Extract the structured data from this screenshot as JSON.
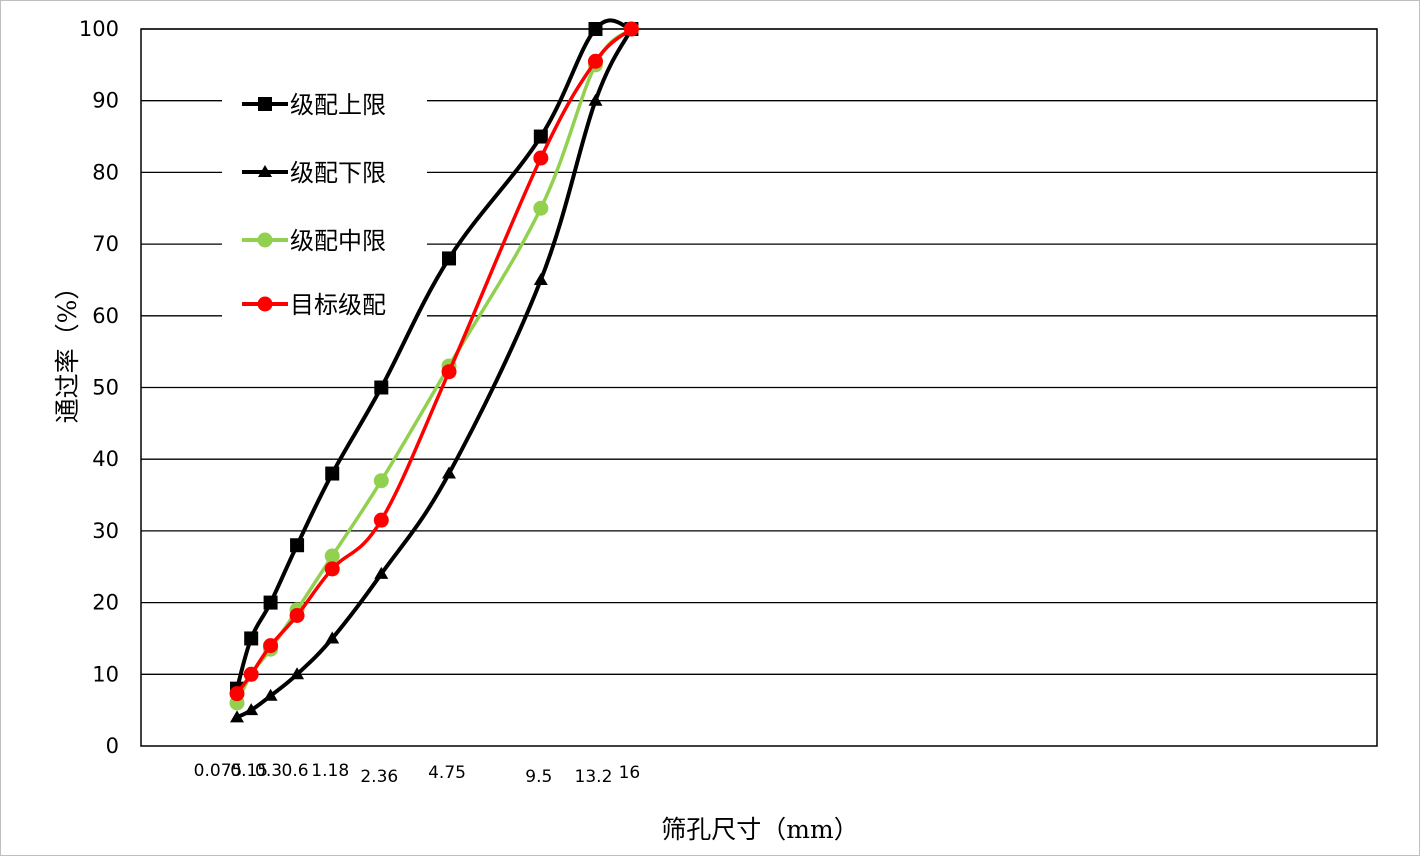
{
  "chart_data": {
    "type": "line",
    "title": "",
    "xlabel": "筛孔尺寸（mm）",
    "ylabel": "通过率（%）",
    "x": [
      "0.075",
      "0.15",
      "0.3",
      "0.6",
      "1.18",
      "2.36",
      "4.75",
      "9.5",
      "13.2",
      "16"
    ],
    "ylim": [
      0,
      100
    ],
    "yticks": [
      "0",
      "10",
      "20",
      "30",
      "40",
      "50",
      "60",
      "70",
      "80",
      "90",
      "100"
    ],
    "grid": true,
    "legend_position": "top-left",
    "series": [
      {
        "name": "级配上限",
        "color": "#000000",
        "marker": "square",
        "values": [
          8,
          15,
          20,
          28,
          38,
          50,
          68,
          85,
          100,
          100
        ]
      },
      {
        "name": "级配下限",
        "color": "#000000",
        "marker": "triangle",
        "values": [
          4,
          5,
          7,
          10,
          15,
          24,
          38,
          65,
          90,
          100
        ]
      },
      {
        "name": "级配中限",
        "color": "#92d050",
        "marker": "circle",
        "values": [
          6,
          10,
          13.5,
          19,
          26.5,
          37,
          53,
          75,
          95,
          100
        ]
      },
      {
        "name": "目标级配",
        "color": "#ff0000",
        "marker": "circle",
        "values": [
          7.3,
          10,
          14,
          18.2,
          24.7,
          31.5,
          52.2,
          82,
          95.5,
          100
        ]
      }
    ]
  }
}
